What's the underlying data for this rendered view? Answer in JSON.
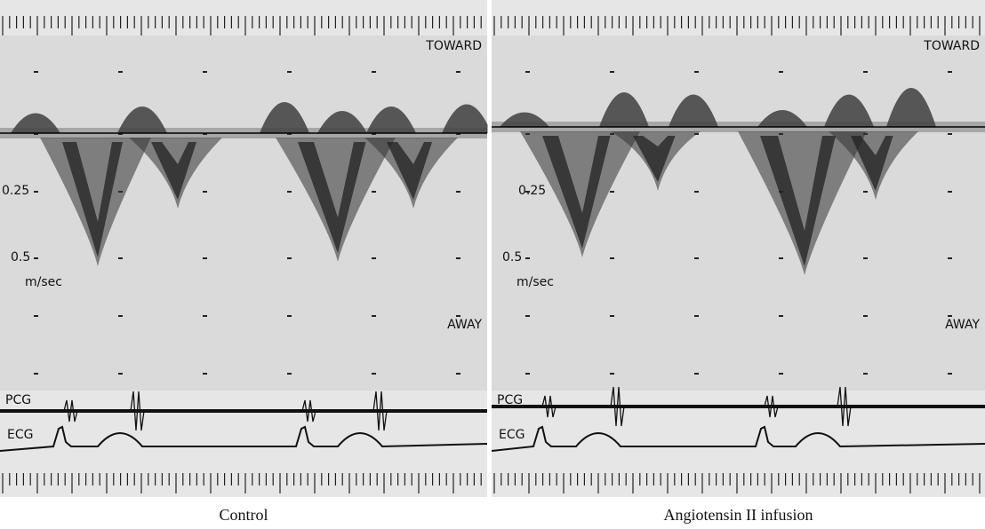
{
  "panels": [
    {
      "caption": "Control",
      "toward": "TOWARD",
      "away": "AWAY",
      "scale_labels": [
        "0.25",
        "0.5"
      ],
      "unit": "m/sec",
      "pcg": "PCG",
      "ecg": "ECG"
    },
    {
      "caption": "Angiotensin II infusion",
      "toward": "TOWARD",
      "away": "AWAY",
      "scale_labels": [
        "0.25",
        "0.5"
      ],
      "unit": "m/sec",
      "pcg": "PCG",
      "ecg": "ECG"
    }
  ]
}
